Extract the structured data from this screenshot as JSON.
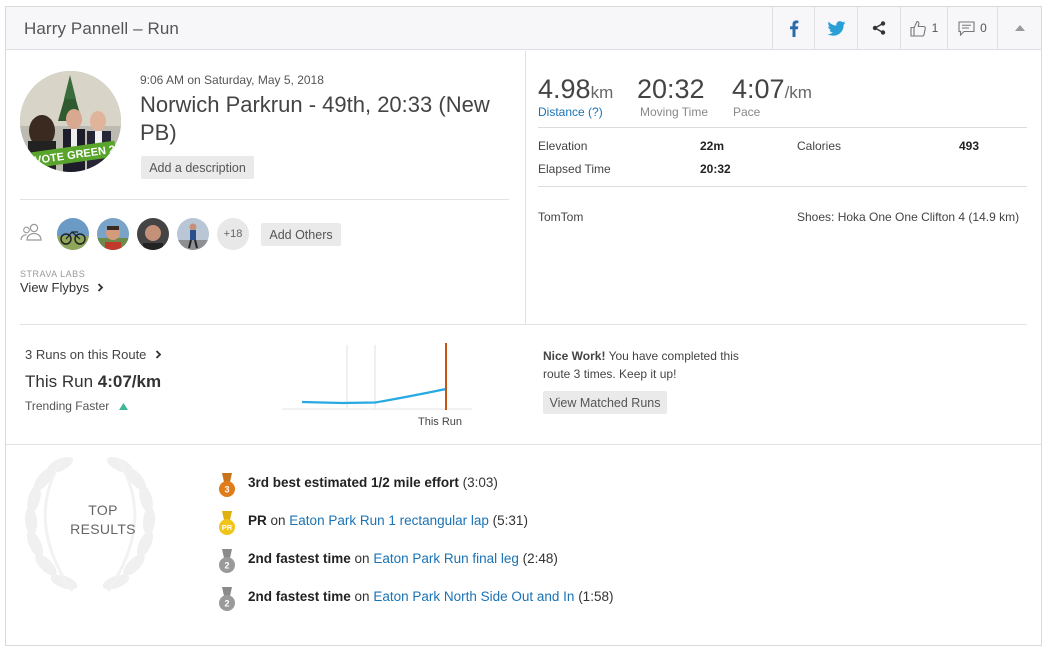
{
  "header": {
    "title": "Harry Pannell – Run",
    "kudos_count": "1",
    "comment_count": "0"
  },
  "activity": {
    "datetime": "9:06 AM on Saturday, May 5, 2018",
    "title": "Norwich Parkrun - 49th, 20:33 (New PB)",
    "add_description": "Add a description",
    "avatar_banner": "VOTE GREEN 2018",
    "others_count": "+18",
    "add_others": "Add Others",
    "labs_label": "STRAVA LABS",
    "view_flybys": "View Flybys"
  },
  "stats": {
    "distance_value": "4.98",
    "distance_unit": "km",
    "distance_label": "Distance (?)",
    "moving_time_value": "20:32",
    "moving_time_label": "Moving Time",
    "pace_value": "4:07",
    "pace_unit": "/km",
    "pace_label": "Pace",
    "elevation_label": "Elevation",
    "elevation_value": "22m",
    "calories_label": "Calories",
    "calories_value": "493",
    "elapsed_label": "Elapsed Time",
    "elapsed_value": "20:32",
    "device": "TomTom",
    "shoes": "Shoes: Hoka One One Clifton 4 (14.9 km)"
  },
  "route": {
    "runs_on_route": "3 Runs on this Route",
    "this_run_label": "This Run",
    "this_run_pace": "4:07/km",
    "trending": "Trending Faster",
    "chart_marker_label": "This Run",
    "nice_bold": "Nice Work!",
    "nice_text": " You have completed this route 3 times. Keep it up!",
    "view_matched": "View Matched Runs"
  },
  "results": {
    "heading_line1": "TOP",
    "heading_line2": "RESULTS",
    "items": [
      {
        "medal": "3",
        "bold": "3rd best estimated 1/2 mile effort",
        "on": "",
        "segment": "",
        "time": " (3:03)",
        "color": "#e07d1a"
      },
      {
        "medal": "PR",
        "bold": "PR",
        "on": " on ",
        "segment": "Eaton Park Run 1 rectangular lap",
        "time": " (5:31)",
        "color": "#f0c419"
      },
      {
        "medal": "2",
        "bold": "2nd fastest time",
        "on": " on ",
        "segment": "Eaton Park Run final leg",
        "time": " (2:48)",
        "color": "#9a9a9a"
      },
      {
        "medal": "2",
        "bold": "2nd fastest time",
        "on": " on ",
        "segment": "Eaton Park North Side Out and In",
        "time": " (1:58)",
        "color": "#9a9a9a"
      }
    ]
  },
  "colors": {
    "link": "#1a73b5",
    "trend_line": "#27a9e1",
    "this_run_marker": "#c8550f",
    "trend_arrow": "#3cb896"
  }
}
